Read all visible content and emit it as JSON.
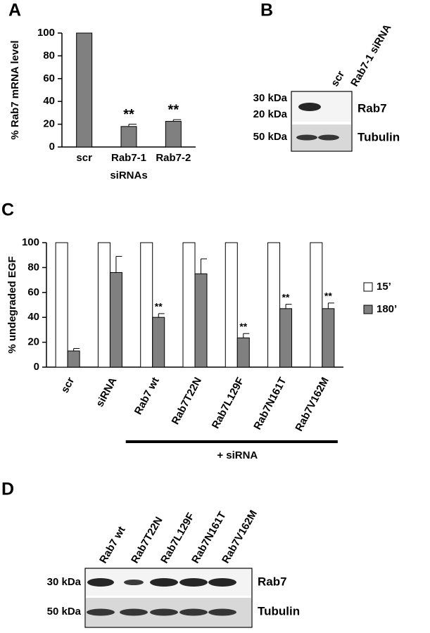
{
  "panel_labels": [
    "A",
    "B",
    "C",
    "D"
  ],
  "chart_data": [
    {
      "type": "bar",
      "ylabel": "% Rab7 mRNA level",
      "xlabel": "siRNAs",
      "categories": [
        "scr",
        "Rab7-1",
        "Rab7-2"
      ],
      "values": [
        100,
        18,
        22.5
      ],
      "errors": [
        0,
        2,
        1.5
      ],
      "color": "#808080",
      "ylim": [
        0,
        100
      ],
      "yticks": [
        0,
        20,
        40,
        60,
        80,
        100
      ],
      "annotations": [
        {
          "category": "Rab7-1",
          "text": "**"
        },
        {
          "category": "Rab7-2",
          "text": "**"
        }
      ]
    },
    {
      "type": "bar",
      "ylabel": "% undegraded EGF",
      "categories": [
        "scr",
        "siRNA",
        "Rab7 wt",
        "Rab7T22N",
        "Rab7L129F",
        "Rab7N161T",
        "Rab7V162M"
      ],
      "series": [
        {
          "name": "15’",
          "color": "#ffffff",
          "values": [
            100,
            100,
            100,
            100,
            100,
            100,
            100
          ]
        },
        {
          "name": "180’",
          "color": "#808080",
          "values": [
            13,
            76,
            40,
            75,
            23.5,
            47,
            47
          ],
          "errors": [
            2,
            13,
            3,
            12,
            3.5,
            3.5,
            4.5
          ]
        }
      ],
      "ylim": [
        0,
        100
      ],
      "yticks": [
        0,
        20,
        40,
        60,
        80,
        100
      ],
      "legend": "right",
      "annotations": [
        {
          "category": "Rab7 wt",
          "text": "**"
        },
        {
          "category": "Rab7L129F",
          "text": "**"
        },
        {
          "category": "Rab7N161T",
          "text": "**"
        },
        {
          "category": "Rab7V162M",
          "text": "**"
        }
      ],
      "bracket": {
        "text": "+ siRNA",
        "from": "Rab7 wt",
        "to": "Rab7V162M"
      }
    }
  ],
  "blot_b": {
    "lanes": [
      "scr",
      "Rab7-1 siRNA"
    ],
    "markers": [
      "30 kDa",
      "20 kDa",
      "50 kDa"
    ],
    "proteins": [
      "Rab7",
      "Tubulin"
    ]
  },
  "blot_d": {
    "lanes": [
      "Rab7 wt",
      "Rab7T22N",
      "Rab7L129F",
      "Rab7N161T",
      "Rab7V162M"
    ],
    "markers": [
      "30 kDa",
      "50 kDa"
    ],
    "proteins": [
      "Rab7",
      "Tubulin"
    ]
  }
}
